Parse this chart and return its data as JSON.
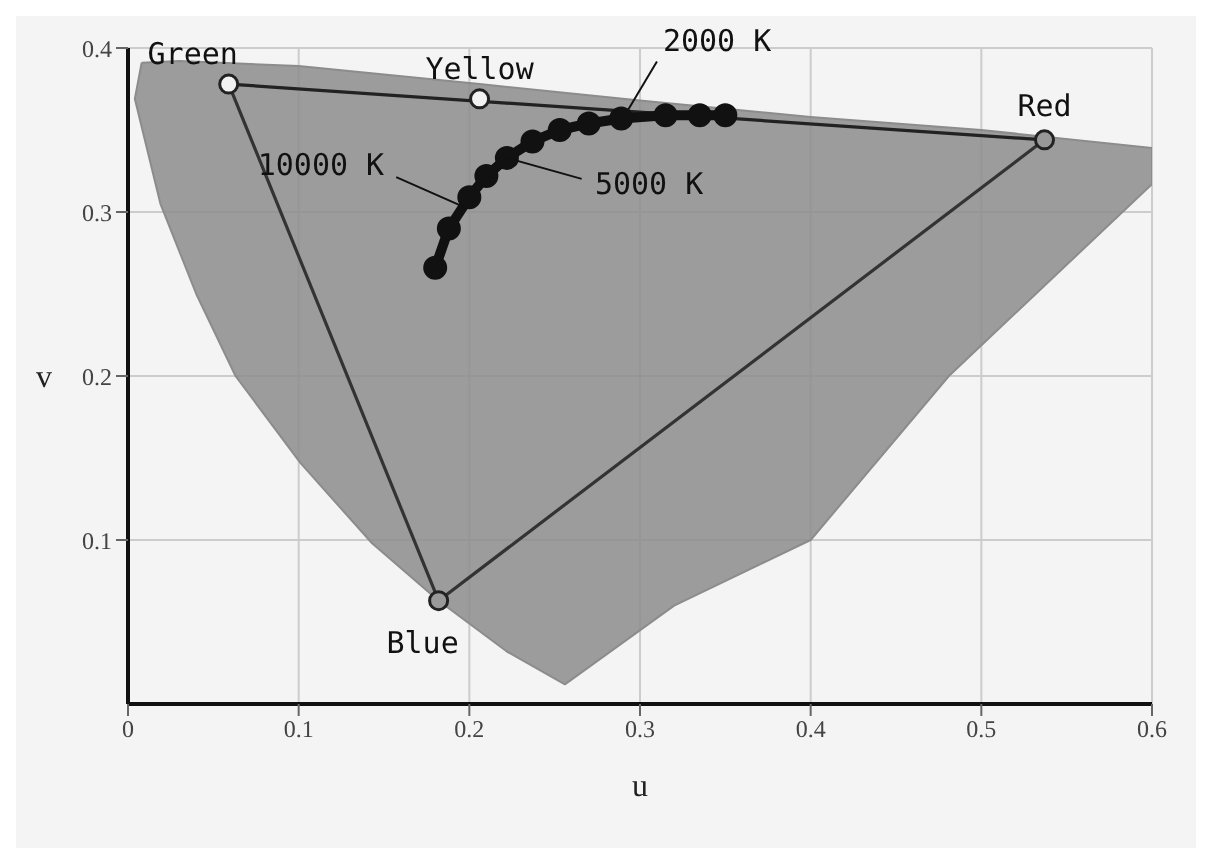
{
  "chart_data": {
    "type": "line",
    "xlabel": "u",
    "ylabel": "v",
    "xlim": [
      0,
      0.6
    ],
    "ylim": [
      0,
      0.4
    ],
    "xticks": [
      0,
      0.1,
      0.2,
      0.3,
      0.4,
      0.5,
      0.6
    ],
    "yticks": [
      0.1,
      0.2,
      0.3,
      0.4
    ],
    "grid": true,
    "legend": false,
    "series": [
      {
        "type": "area",
        "color": "#8c8c8c",
        "x": [
          0.008,
          0.004,
          0.019,
          0.04,
          0.063,
          0.101,
          0.143,
          0.182,
          0.222,
          0.256,
          0.32,
          0.4,
          0.481,
          0.6,
          0.6,
          0.5,
          0.4,
          0.3,
          0.206,
          0.1,
          0.03,
          0.008
        ],
        "values": [
          0.391,
          0.369,
          0.305,
          0.25,
          0.2,
          0.147,
          0.098,
          0.063,
          0.032,
          0.012,
          0.06,
          0.1,
          0.2,
          0.317,
          0.339,
          0.35,
          0.358,
          0.368,
          0.378,
          0.389,
          0.392,
          0.391
        ]
      },
      {
        "type": "line",
        "color": "#222222",
        "marker": "none",
        "x": [
          0.059,
          0.537
        ],
        "values": [
          0.378,
          0.344
        ]
      },
      {
        "type": "line",
        "color": "#333333",
        "marker": "none",
        "x": [
          0.059,
          0.182,
          0.537
        ],
        "values": [
          0.378,
          0.063,
          0.344
        ]
      },
      {
        "color": "#111111",
        "marker": "circle",
        "x": [
          0.18,
          0.188,
          0.2,
          0.21,
          0.222,
          0.237,
          0.253,
          0.27,
          0.289,
          0.315,
          0.335,
          0.35
        ],
        "values": [
          0.266,
          0.29,
          0.309,
          0.322,
          0.333,
          0.343,
          0.35,
          0.354,
          0.357,
          0.359,
          0.359,
          0.359
        ]
      },
      {
        "type": "scatter",
        "marker": "circle",
        "colors": [
          "#f2f2f2",
          "#f2f2f2",
          "#999999",
          "#999999"
        ],
        "x": [
          0.059,
          0.206,
          0.537,
          0.182
        ],
        "values": [
          0.378,
          0.369,
          0.344,
          0.063
        ]
      }
    ],
    "annotations": [
      {
        "text": "Green",
        "x": 0.059,
        "y": 0.378
      },
      {
        "text": "Yellow",
        "x": 0.206,
        "y": 0.369
      },
      {
        "text": "Red",
        "x": 0.537,
        "y": 0.344
      },
      {
        "text": "Blue",
        "x": 0.182,
        "y": 0.063
      },
      {
        "text": "2000 K",
        "x": 0.29,
        "y": 0.357
      },
      {
        "text": "5000 K",
        "x": 0.222,
        "y": 0.333
      },
      {
        "text": "10000 K",
        "x": 0.197,
        "y": 0.303
      }
    ]
  }
}
